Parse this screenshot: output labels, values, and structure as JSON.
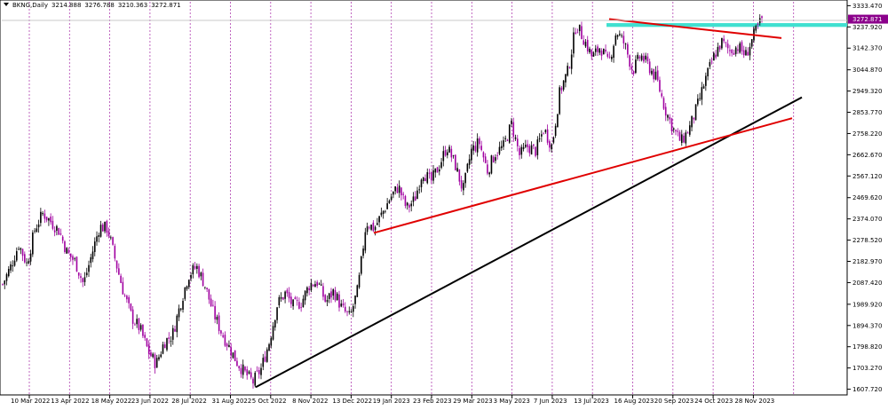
{
  "header": {
    "symbol": "BKNG,Daily",
    "ohlc": [
      "3214.888",
      "3276.788",
      "3210.363",
      "3272.871"
    ]
  },
  "price_label": {
    "value": "3272.871",
    "bg_color": "#8b008b"
  },
  "colors": {
    "bull": "#000000",
    "bear": "#a000a0",
    "grid": "#b040b0",
    "trend_black": "#000000",
    "trend_red": "#e00000",
    "resistance_zone": "#40e0d0"
  },
  "chart_data": {
    "type": "candlestick",
    "ylim": [
      1582,
      3351
    ],
    "y_ticks": [
      "3333.470",
      "3237.920",
      "3142.370",
      "3044.870",
      "2949.320",
      "2853.770",
      "2758.220",
      "2662.670",
      "2567.120",
      "2469.620",
      "2374.070",
      "2278.520",
      "2182.970",
      "2087.420",
      "1989.920",
      "1894.370",
      "1798.820",
      "1703.270",
      "1607.720"
    ],
    "x_labels": [
      "10 Mar 2022",
      "13 Apr 2022",
      "18 May 2022",
      "23 Jun 2022",
      "28 Jul 2022",
      "31 Aug 2022",
      "5 Oct 2022",
      "8 Nov 2022",
      "13 Dec 2022",
      "19 Jan 2023",
      "23 Feb 2023",
      "29 Mar 2023",
      "3 May 2023",
      "7 Jun 2023",
      "13 Jul 2023",
      "16 Aug 2023",
      "20 Sep 2023",
      "24 Oct 2023",
      "28 Nov 2023"
    ],
    "last_close": 3272.871,
    "series": [
      {
        "name": "BKNG",
        "close_path": [
          2080,
          2160,
          2260,
          2170,
          2330,
          2400,
          2360,
          2320,
          2220,
          2180,
          2080,
          2210,
          2340,
          2330,
          2180,
          2040,
          1930,
          1880,
          1780,
          1720,
          1820,
          1850,
          1990,
          2120,
          2160,
          2080,
          1960,
          1870,
          1800,
          1730,
          1680,
          1640,
          1700,
          1820,
          1990,
          2040,
          1980,
          2000,
          2080,
          2090,
          2000,
          2050,
          1970,
          1930,
          2060,
          2360,
          2330,
          2400,
          2470,
          2520,
          2420,
          2460,
          2590,
          2540,
          2610,
          2700,
          2620,
          2500,
          2680,
          2720,
          2590,
          2670,
          2700,
          2800,
          2660,
          2700,
          2680,
          2780,
          2700,
          2950,
          3040,
          3250,
          3180,
          3100,
          3150,
          3070,
          3220,
          3160,
          3040,
          3110,
          3060,
          3000,
          2870,
          2780,
          2720,
          2780,
          2880,
          3000,
          3100,
          3170,
          3130,
          3150,
          3110,
          3200,
          3273
        ]
      }
    ],
    "trendlines": [
      {
        "name": "long-term support",
        "color": "black",
        "from": [
          "5 Oct 2022",
          1617
        ],
        "to": [
          "end",
          2921
        ]
      },
      {
        "name": "ascending support",
        "color": "red",
        "from": [
          "19 Jan 2023",
          2311
        ],
        "to": [
          "end",
          2827
        ]
      },
      {
        "name": "descending resistance",
        "color": "red",
        "from": [
          "13 Jul 2023",
          3273
        ],
        "to": [
          "end",
          3188
        ]
      }
    ],
    "zones": [
      {
        "name": "resistance",
        "color": "turquoise",
        "low": 3237.9,
        "high": 3255.0
      }
    ]
  }
}
